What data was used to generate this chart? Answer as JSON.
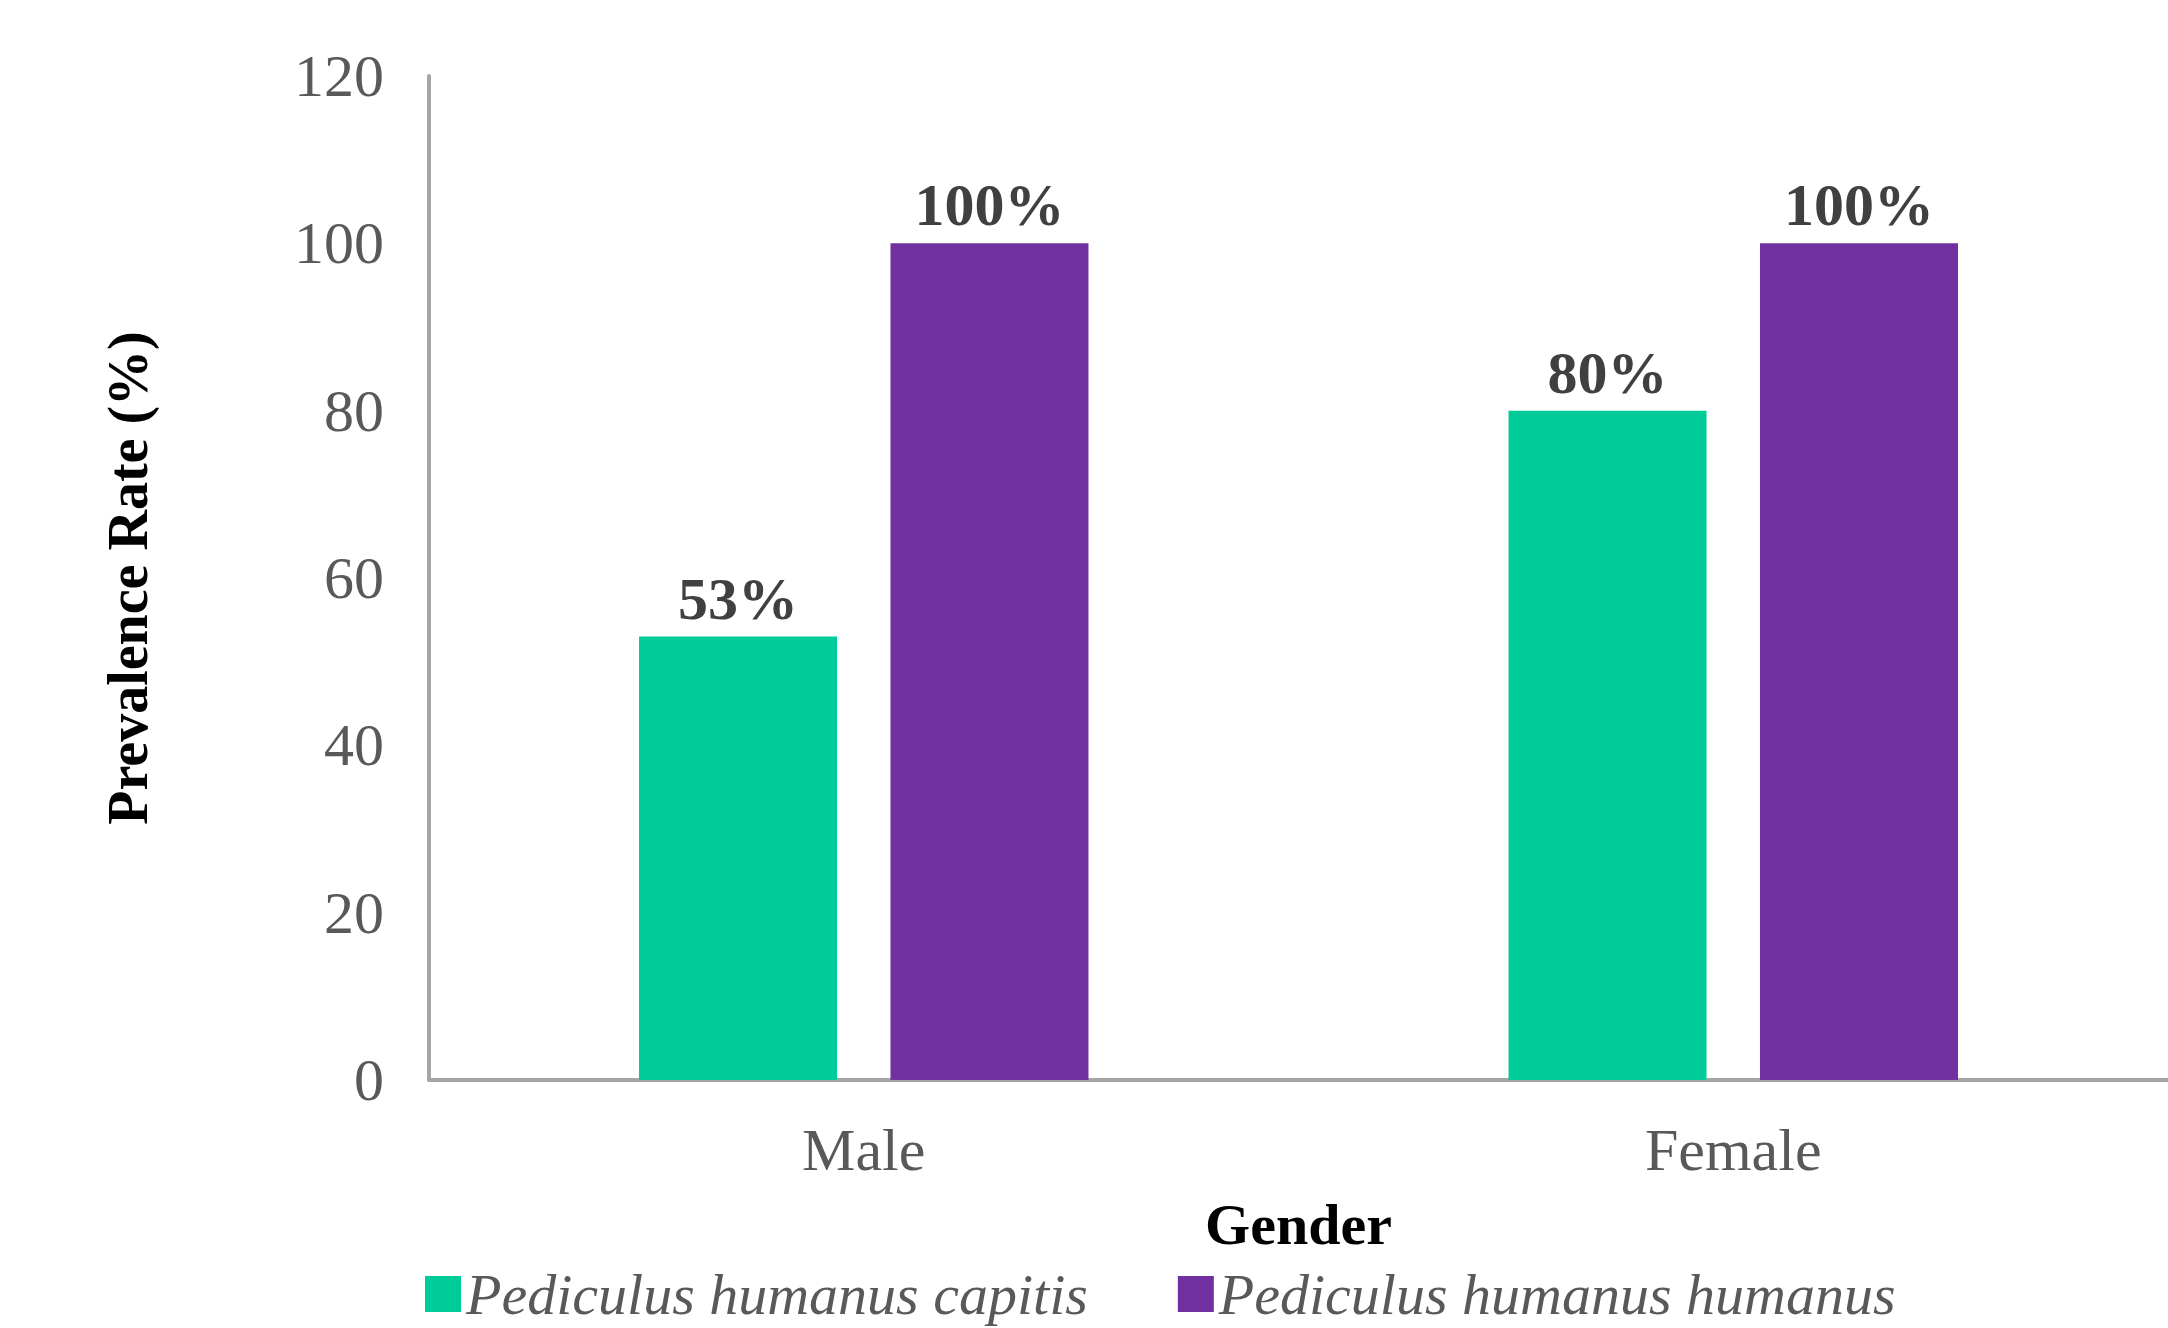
{
  "chart_data": {
    "type": "bar",
    "xlabel": "Gender",
    "ylabel": "Prevalence Rate (%)",
    "categories": [
      "Male",
      "Female"
    ],
    "series": [
      {
        "name": "Pediculus humanus capitis",
        "color": "#00cc99",
        "values": [
          53,
          80
        ],
        "value_labels": [
          "53%",
          "80%"
        ]
      },
      {
        "name": "Pediculus humanus humanus",
        "color": "#7030a0",
        "values": [
          100,
          100
        ],
        "value_labels": [
          "100%",
          "100%"
        ]
      }
    ],
    "ylim": [
      0,
      120
    ],
    "yticks": [
      0,
      20,
      40,
      60,
      80,
      100,
      120
    ],
    "grid": false,
    "legend": "bottom"
  }
}
